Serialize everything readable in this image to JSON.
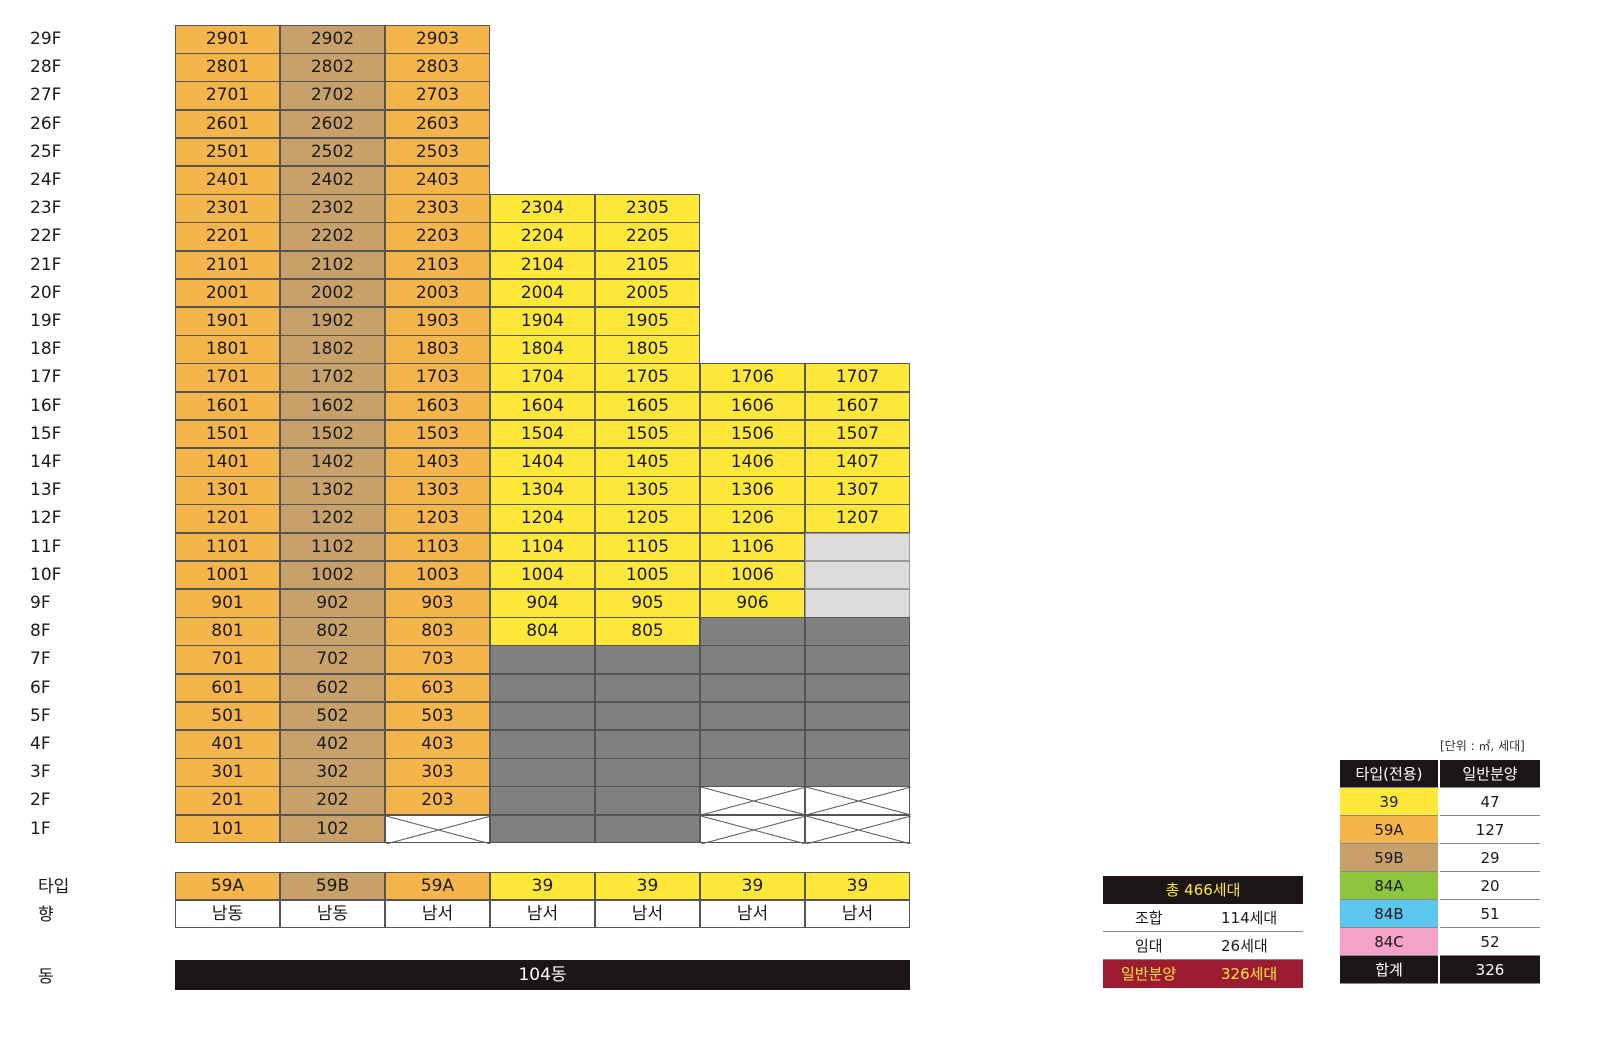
{
  "colors": {
    "59A": "#f5b54a",
    "59B": "#c8a16a",
    "39": "#ffe83a",
    "84A": "#8cc540",
    "84B": "#5bc6ee",
    "84C": "#f4a3c8",
    "dark": "#1b1516",
    "red": "#9b1b30",
    "gold": "#ffe83a"
  },
  "floors": [
    "29F",
    "28F",
    "27F",
    "26F",
    "25F",
    "24F",
    "23F",
    "22F",
    "21F",
    "20F",
    "19F",
    "18F",
    "17F",
    "16F",
    "15F",
    "14F",
    "13F",
    "12F",
    "11F",
    "10F",
    "9F",
    "8F",
    "7F",
    "6F",
    "5F",
    "4F",
    "3F",
    "2F",
    "1F"
  ],
  "grid": [
    [
      "2901",
      "2902",
      "2903",
      "",
      "",
      "",
      ""
    ],
    [
      "2801",
      "2802",
      "2803",
      "",
      "",
      "",
      ""
    ],
    [
      "2701",
      "2702",
      "2703",
      "",
      "",
      "",
      ""
    ],
    [
      "2601",
      "2602",
      "2603",
      "",
      "",
      "",
      ""
    ],
    [
      "2501",
      "2502",
      "2503",
      "",
      "",
      "",
      ""
    ],
    [
      "2401",
      "2402",
      "2403",
      "",
      "",
      "",
      ""
    ],
    [
      "2301",
      "2302",
      "2303",
      "2304",
      "2305",
      "",
      ""
    ],
    [
      "2201",
      "2202",
      "2203",
      "2204",
      "2205",
      "",
      ""
    ],
    [
      "2101",
      "2102",
      "2103",
      "2104",
      "2105",
      "",
      ""
    ],
    [
      "2001",
      "2002",
      "2003",
      "2004",
      "2005",
      "",
      ""
    ],
    [
      "1901",
      "1902",
      "1903",
      "1904",
      "1905",
      "",
      ""
    ],
    [
      "1801",
      "1802",
      "1803",
      "1804",
      "1805",
      "",
      ""
    ],
    [
      "1701",
      "1702",
      "1703",
      "1704",
      "1705",
      "1706",
      "1707"
    ],
    [
      "1601",
      "1602",
      "1603",
      "1604",
      "1605",
      "1606",
      "1607"
    ],
    [
      "1501",
      "1502",
      "1503",
      "1504",
      "1505",
      "1506",
      "1507"
    ],
    [
      "1401",
      "1402",
      "1403",
      "1404",
      "1405",
      "1406",
      "1407"
    ],
    [
      "1301",
      "1302",
      "1303",
      "1304",
      "1305",
      "1306",
      "1307"
    ],
    [
      "1201",
      "1202",
      "1203",
      "1204",
      "1205",
      "1206",
      "1207"
    ],
    [
      "1101",
      "1102",
      "1103",
      "1104",
      "1105",
      "1106",
      "#G"
    ],
    [
      "1001",
      "1002",
      "1003",
      "1004",
      "1005",
      "1006",
      "#G"
    ],
    [
      "901",
      "902",
      "903",
      "904",
      "905",
      "906",
      "#G"
    ],
    [
      "801",
      "802",
      "803",
      "804",
      "805",
      "#D",
      "#D"
    ],
    [
      "701",
      "702",
      "703",
      "#D",
      "#D",
      "#D",
      "#D"
    ],
    [
      "601",
      "602",
      "603",
      "#D",
      "#D",
      "#D",
      "#D"
    ],
    [
      "501",
      "502",
      "503",
      "#D",
      "#D",
      "#D",
      "#D"
    ],
    [
      "401",
      "402",
      "403",
      "#D",
      "#D",
      "#D",
      "#D"
    ],
    [
      "301",
      "302",
      "303",
      "#D",
      "#D",
      "#D",
      "#D"
    ],
    [
      "201",
      "202",
      "203",
      "#D",
      "#D",
      "#X",
      "#X"
    ],
    [
      "101",
      "102",
      "#X",
      "#D",
      "#D",
      "#X",
      "#X"
    ]
  ],
  "row_labels": {
    "type": "타입",
    "direction": "향",
    "building": "동"
  },
  "column_types": [
    "59A",
    "59B",
    "59A",
    "39",
    "39",
    "39",
    "39"
  ],
  "column_directions": [
    "남동",
    "남동",
    "남서",
    "남서",
    "남서",
    "남서",
    "남서"
  ],
  "building_name": "104동",
  "summary": {
    "total": "총 466세대",
    "rows": [
      {
        "label": "조합",
        "value": "114세대"
      },
      {
        "label": "임대",
        "value": "26세대"
      },
      {
        "label": "일반분양",
        "value": "326세대"
      }
    ]
  },
  "legend": {
    "unit_note": "[단위 : ㎡, 세대]",
    "header": [
      "타입(전용)",
      "일반분양"
    ],
    "rows": [
      {
        "type": "39",
        "count": "47"
      },
      {
        "type": "59A",
        "count": "127"
      },
      {
        "type": "59B",
        "count": "29"
      },
      {
        "type": "84A",
        "count": "20"
      },
      {
        "type": "84B",
        "count": "51"
      },
      {
        "type": "84C",
        "count": "52"
      }
    ],
    "total": {
      "label": "합계",
      "count": "326"
    }
  }
}
